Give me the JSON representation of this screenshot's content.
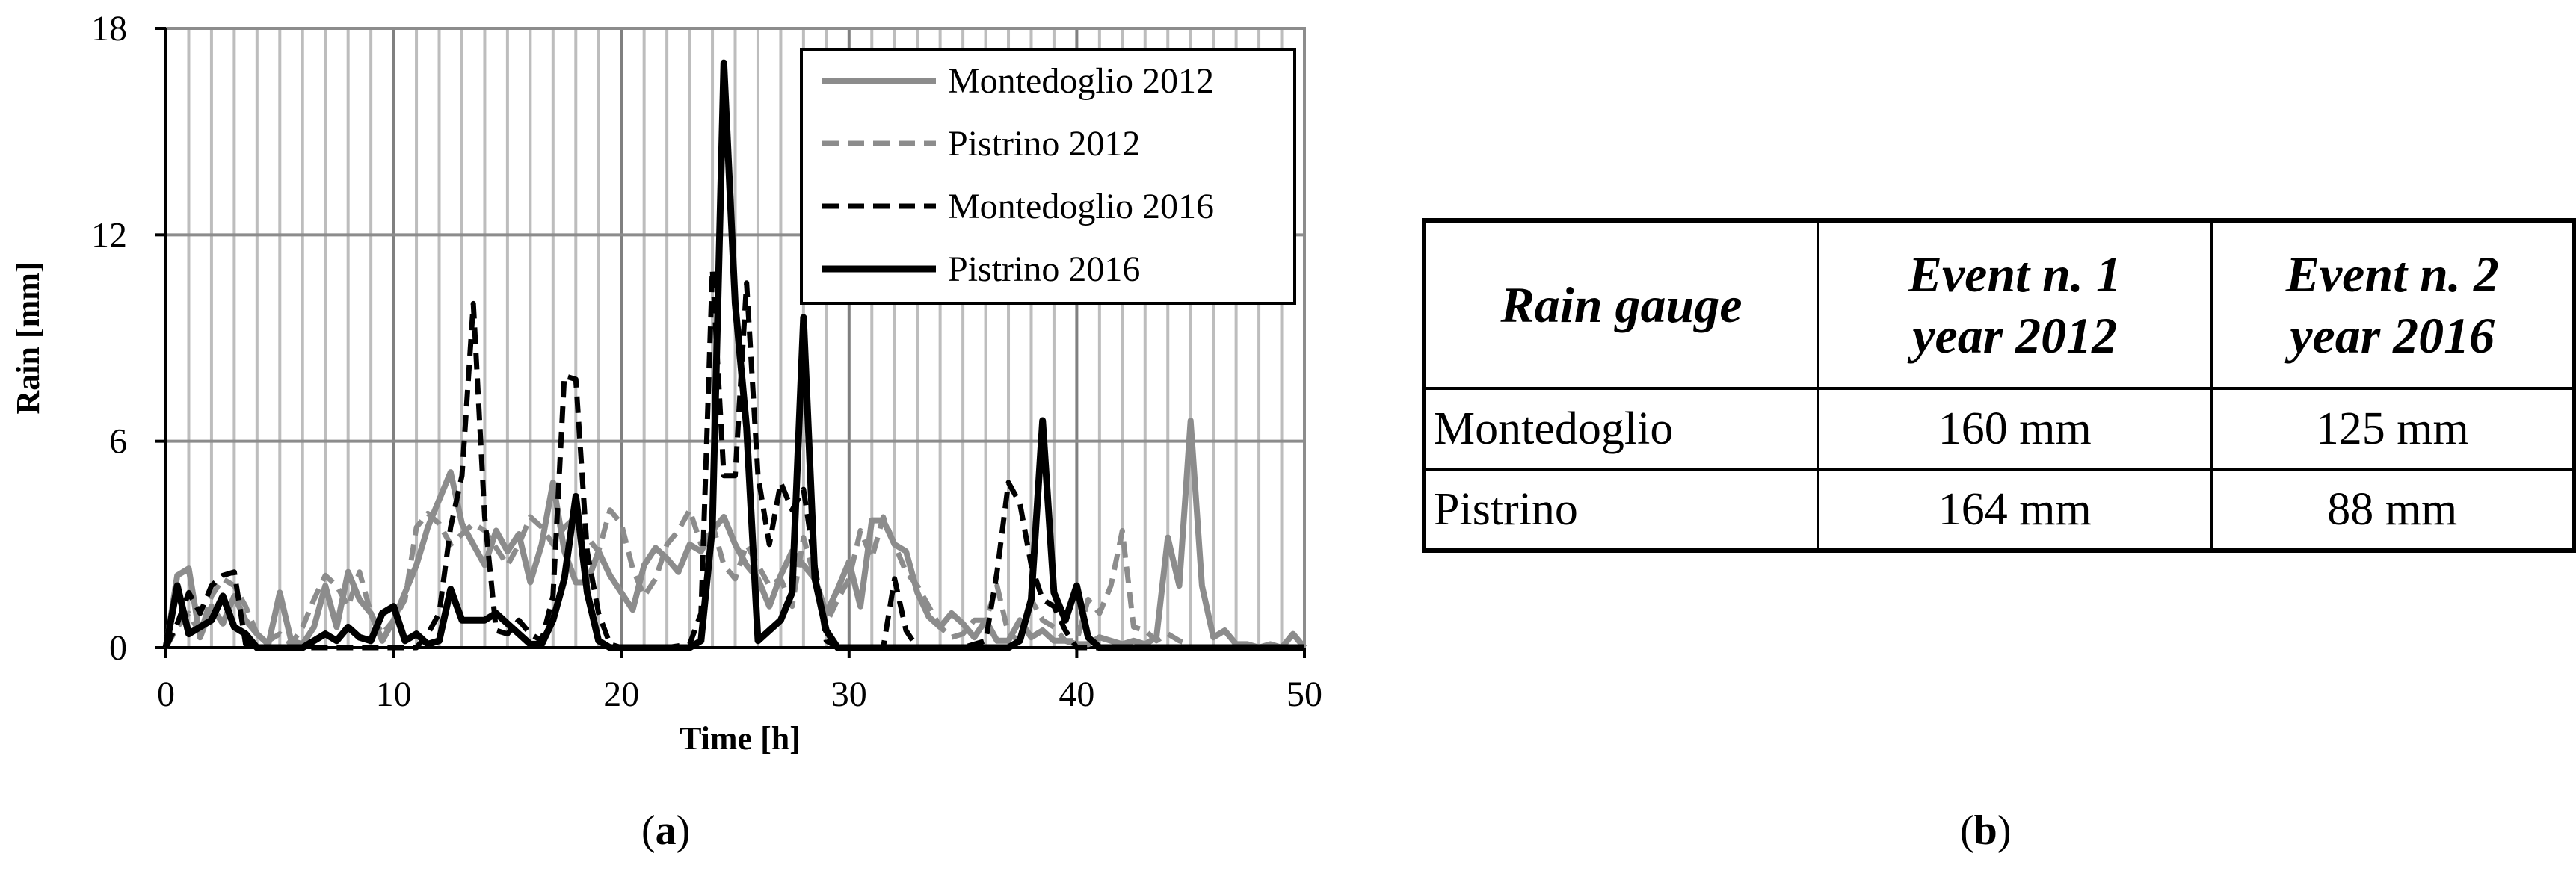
{
  "chart_data": {
    "type": "line",
    "title": "",
    "xlabel": "Time [h]",
    "ylabel": "Rain [mm]",
    "xlim": [
      0,
      50
    ],
    "ylim": [
      0,
      18
    ],
    "x_ticks": [
      "0",
      "10",
      "20",
      "30",
      "40",
      "50"
    ],
    "y_ticks": [
      "0",
      "6",
      "12",
      "18"
    ],
    "grid": "vertical lines every 1 h, horizontal lines every 6 mm",
    "legend": "top-right",
    "series": [
      {
        "name": "Montedoglio 2012",
        "style": "solid",
        "color": "#8c8c8c",
        "x": [
          0,
          0.5,
          1,
          1.5,
          2,
          2.5,
          3,
          3.5,
          4,
          4.5,
          5,
          5.5,
          6,
          6.5,
          7,
          7.5,
          8,
          8.5,
          9,
          9.5,
          10,
          10.5,
          11,
          11.5,
          12,
          12.5,
          13,
          13.5,
          14,
          14.5,
          15,
          15.5,
          16,
          16.5,
          17,
          17.5,
          18,
          18.5,
          19,
          19.5,
          20,
          20.5,
          21,
          21.5,
          22,
          22.5,
          23,
          23.5,
          24,
          24.5,
          25,
          25.5,
          26,
          26.5,
          27,
          27.5,
          28,
          28.5,
          29,
          29.5,
          30,
          30.5,
          31,
          31.5,
          32,
          32.5,
          33,
          33.5,
          34,
          34.5,
          35,
          35.5,
          36,
          36.5,
          37,
          37.5,
          38,
          38.5,
          39,
          39.5,
          40,
          40.5,
          41,
          41.5,
          42,
          42.5,
          43,
          43.5,
          44,
          44.5,
          45,
          45.5,
          46,
          46.5,
          47,
          47.5,
          48,
          48.5,
          49,
          49.5,
          50
        ],
        "y": [
          0,
          2.1,
          2.3,
          0.3,
          1.2,
          0.7,
          1.5,
          0.8,
          0.4,
          0.1,
          1.6,
          0.2,
          0.1,
          0.6,
          1.8,
          0.6,
          2.2,
          1.4,
          1.0,
          0.2,
          0.8,
          1.6,
          2.4,
          3.5,
          4.3,
          5.1,
          3.6,
          3.0,
          2.4,
          3.4,
          2.8,
          3.3,
          1.9,
          3.0,
          4.8,
          2.8,
          1.9,
          1.9,
          2.8,
          2.1,
          1.6,
          1.1,
          2.4,
          2.9,
          2.6,
          2.2,
          3.0,
          2.8,
          3.4,
          3.8,
          3.0,
          2.4,
          2.0,
          1.2,
          2.1,
          2.8,
          2.4,
          2.0,
          1.0,
          1.7,
          2.5,
          1.2,
          3.7,
          3.7,
          3.0,
          2.8,
          1.6,
          0.9,
          0.6,
          1.0,
          0.7,
          0.3,
          0.8,
          0.2,
          0.2,
          0.8,
          0.3,
          0.5,
          0.2,
          0.2,
          0.1,
          0.1,
          0.3,
          0.2,
          0.1,
          0.2,
          0.1,
          0.3,
          3.2,
          1.8,
          6.6,
          1.8,
          0.3,
          0.5,
          0.1,
          0.1,
          0.0,
          0.1,
          0.0,
          0.4,
          0.0
        ]
      },
      {
        "name": "Pistrino 2012",
        "style": "dashed",
        "color": "#8c8c8c",
        "x": [
          0,
          0.5,
          1,
          1.5,
          2,
          2.5,
          3,
          3.5,
          4,
          4.5,
          5,
          5.5,
          6,
          6.5,
          7,
          7.5,
          8,
          8.5,
          9,
          9.5,
          10,
          10.5,
          11,
          11.5,
          12,
          12.5,
          13,
          13.5,
          14,
          14.5,
          15,
          15.5,
          16,
          16.5,
          17,
          17.5,
          18,
          18.5,
          19,
          19.5,
          20,
          20.5,
          21,
          21.5,
          22,
          22.5,
          23,
          23.5,
          24,
          24.5,
          25,
          25.5,
          26,
          26.5,
          27,
          27.5,
          28,
          28.5,
          29,
          29.5,
          30,
          30.5,
          31,
          31.5,
          32,
          32.5,
          33,
          33.5,
          34,
          34.5,
          35,
          35.5,
          36,
          36.5,
          37,
          37.5,
          38,
          38.5,
          39,
          39.5,
          40,
          40.5,
          41,
          41.5,
          42,
          42.5,
          43,
          43.5,
          44,
          44.5,
          45
        ],
        "y": [
          0,
          0.6,
          1.0,
          0.4,
          1.5,
          2.0,
          1.8,
          1.2,
          0.4,
          0.2,
          0.4,
          0.1,
          0.6,
          1.4,
          2.1,
          1.8,
          1.2,
          2.2,
          1.0,
          0.4,
          0.8,
          1.4,
          3.5,
          3.9,
          3.6,
          3.0,
          3.3,
          3.6,
          3.4,
          2.9,
          2.4,
          3.0,
          3.8,
          3.5,
          3.0,
          3.5,
          3.8,
          3.2,
          2.8,
          4.0,
          3.6,
          2.3,
          1.5,
          2.0,
          3.0,
          3.4,
          4.0,
          3.0,
          3.6,
          2.4,
          2.0,
          3.0,
          2.4,
          1.8,
          2.0,
          1.2,
          3.2,
          2.0,
          0.7,
          1.4,
          2.0,
          3.4,
          2.6,
          3.8,
          3.0,
          2.2,
          1.8,
          1.2,
          0.6,
          0.3,
          0.4,
          0.8,
          0.8,
          1.8,
          0.4,
          0.2,
          1.4,
          0.8,
          0.6,
          0.2,
          0.2,
          1.4,
          1.0,
          1.8,
          3.4,
          0.6,
          0.5,
          0.2,
          0.4,
          0.2,
          0.1
        ]
      },
      {
        "name": "Montedoglio 2016",
        "style": "dashed",
        "color": "#000000",
        "x": [
          0,
          0.5,
          1,
          1.5,
          2,
          2.5,
          3,
          3.5,
          4,
          5,
          6,
          7,
          8,
          9,
          10,
          10.5,
          11,
          11.5,
          12,
          12.5,
          13,
          13.5,
          14,
          14.5,
          15,
          15.5,
          16,
          16.5,
          17,
          17.5,
          18,
          18.5,
          19,
          19.5,
          20,
          22,
          23,
          23.5,
          24,
          24.5,
          25,
          25.5,
          26,
          26.5,
          27,
          27.5,
          28,
          28.5,
          29,
          29.5,
          30,
          31,
          31.5,
          32,
          32.5,
          33,
          35,
          36,
          36.5,
          37,
          37.5,
          38,
          38.5,
          39,
          39.5,
          40,
          41,
          45,
          50
        ],
        "y": [
          0,
          0.7,
          1.6,
          1.0,
          1.8,
          2.1,
          2.2,
          0.1,
          0,
          0,
          0,
          0,
          0,
          0,
          0,
          0,
          0,
          0.4,
          1.0,
          3.5,
          5.0,
          10.0,
          3.8,
          0.5,
          0.4,
          0.8,
          0.4,
          0.2,
          1.5,
          7.9,
          7.8,
          2.8,
          1.0,
          0.1,
          0,
          0,
          0.1,
          1.0,
          11.0,
          5.0,
          5.0,
          10.6,
          5.0,
          3.0,
          4.8,
          4.0,
          4.6,
          2.4,
          0.2,
          0,
          0,
          0,
          0,
          2.0,
          0.5,
          0,
          0,
          0.2,
          2.2,
          4.8,
          4.2,
          2.4,
          1.4,
          1.2,
          0.5,
          0,
          0,
          0,
          0
        ]
      },
      {
        "name": "Pistrino 2016",
        "style": "solid",
        "color": "#000000",
        "x": [
          0,
          0.5,
          1,
          1.5,
          2,
          2.5,
          3,
          3.5,
          4,
          5,
          6,
          7,
          7.5,
          8,
          8.5,
          9,
          9.5,
          10,
          10.5,
          11,
          11.5,
          12,
          12.5,
          13,
          13.5,
          14,
          14.5,
          15,
          15.5,
          16,
          16.5,
          17,
          17.5,
          18,
          18.5,
          19,
          19.5,
          20,
          21,
          22,
          23,
          23.5,
          24,
          24.5,
          25,
          25.5,
          26,
          26.5,
          27,
          27.5,
          28,
          28.5,
          29,
          29.5,
          30,
          32,
          35,
          37,
          37.5,
          38,
          38.5,
          39,
          39.5,
          40,
          40.5,
          41,
          45,
          50
        ],
        "y": [
          0,
          1.8,
          0.4,
          0.6,
          0.8,
          1.5,
          0.6,
          0.4,
          0,
          0,
          0,
          0.4,
          0.2,
          0.6,
          0.3,
          0.2,
          1.0,
          1.2,
          0.2,
          0.4,
          0.1,
          0.2,
          1.7,
          0.8,
          0.8,
          0.8,
          1.0,
          0.7,
          0.4,
          0.1,
          0.1,
          0.8,
          2.0,
          4.4,
          1.6,
          0.2,
          0,
          0,
          0,
          0,
          0,
          0.2,
          3.5,
          17.0,
          10.0,
          6.4,
          0.2,
          0.5,
          0.8,
          1.6,
          9.6,
          2.0,
          0.5,
          0,
          0,
          0,
          0,
          0,
          0.2,
          1.4,
          6.6,
          1.6,
          0.8,
          1.8,
          0.3,
          0,
          0,
          0
        ]
      }
    ]
  },
  "labels": {
    "a_open": "(",
    "a_letter": "a",
    "a_close": ")",
    "b_open": "(",
    "b_letter": "b",
    "b_close": ")"
  },
  "table": {
    "header": {
      "col1": "Rain gauge",
      "col2_line1": "Event n. 1",
      "col2_line2": "year 2012",
      "col3_line1": "Event n. 2",
      "col3_line2": "year 2016"
    },
    "rows": [
      {
        "name": "Montedoglio",
        "event1": "160 mm",
        "event2": "125 mm"
      },
      {
        "name": "Pistrino",
        "event1": "164 mm",
        "event2": "88 mm"
      }
    ]
  }
}
